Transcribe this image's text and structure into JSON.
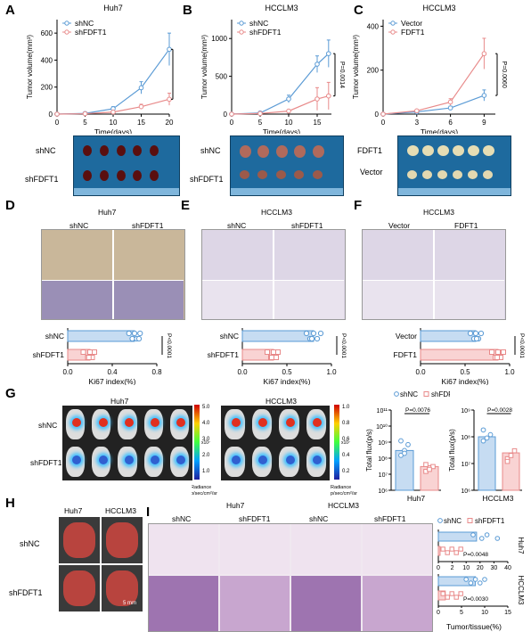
{
  "panel_letters": {
    "A": "A",
    "B": "B",
    "C": "C",
    "D": "D",
    "E": "E",
    "F": "F",
    "G": "G",
    "H": "H",
    "I": "I"
  },
  "titles": {
    "a": "Huh7",
    "b": "HCCLM3",
    "c": "HCCLM3",
    "d": "Huh7",
    "e": "HCCLM3",
    "f": "HCCLM3",
    "g1": "Huh7",
    "g2": "HCCLM3",
    "h1": "Huh7",
    "h2": "HCCLM3",
    "i1": "Huh7",
    "i2": "HCCLM3"
  },
  "photo_labels": {
    "a_top": "shNC",
    "a_bottom": "shFDFT1",
    "b_top": "shNC",
    "b_bottom": "shFDFT1",
    "c_top": "FDFT1",
    "c_bottom": "Vector"
  },
  "ihc_labels": {
    "d_left": "shNC",
    "d_right": "shFDFT1",
    "e_left": "shNC",
    "e_right": "shFDFT1",
    "f_left": "Vector",
    "f_right": "FDFT1"
  },
  "g_labels": {
    "row_top": "shNC",
    "row_bottom": "shFDFT1",
    "cb_ticks_1": [
      "5.0",
      "4.0",
      "3.0",
      "2.0",
      "1.0"
    ],
    "cb_exp_1": "x10⁷",
    "cb_ticks_2": [
      "1.0",
      "0.8",
      "0.6",
      "0.4",
      "0.2"
    ],
    "cb_exp_2": "x10⁷",
    "cb_unit": "Radiance\np/sec/cm²/sr"
  },
  "h_labels": {
    "row_top": "shNC",
    "row_bottom": "shFDFT1",
    "scale": "5 mm"
  },
  "i_labels": {
    "col1": "shNC",
    "col2": "shFDFT1",
    "col3": "shNC",
    "col4": "shFDFT1"
  },
  "colors": {
    "blue": "#5b9bd5",
    "pink": "#e88a8a",
    "bar_blue": "#c6dcf2",
    "bar_pink": "#f9d3d3"
  },
  "chart_data": [
    {
      "id": "A",
      "type": "line",
      "title": "Huh7",
      "xlabel": "Time(days)",
      "ylabel": "Tumor volume(mm³)",
      "xlim": [
        0,
        20
      ],
      "ylim": [
        0,
        700
      ],
      "xticks": [
        0,
        5,
        10,
        15,
        20
      ],
      "yticks": [
        0,
        200,
        400,
        600
      ],
      "series": [
        {
          "name": "shNC",
          "x": [
            0,
            5,
            10,
            15,
            20
          ],
          "y": [
            0,
            5,
            40,
            195,
            480
          ],
          "err": [
            0,
            2,
            15,
            45,
            120
          ]
        },
        {
          "name": "shFDFT1",
          "x": [
            0,
            5,
            10,
            15,
            20
          ],
          "y": [
            0,
            3,
            15,
            55,
            110
          ],
          "err": [
            0,
            1,
            6,
            18,
            45
          ]
        }
      ],
      "pvalue": "P=0.0018"
    },
    {
      "id": "B",
      "type": "line",
      "title": "HCCLM3",
      "xlabel": "Time(days)",
      "ylabel": "Tumor volume(mm³)",
      "xlim": [
        0,
        17.5
      ],
      "ylim": [
        0,
        1250
      ],
      "xticks": [
        0,
        5,
        10,
        15
      ],
      "yticks": [
        0,
        500,
        1000
      ],
      "series": [
        {
          "name": "shNC",
          "x": [
            0,
            5,
            10,
            15,
            17
          ],
          "y": [
            0,
            15,
            200,
            660,
            800
          ],
          "err": [
            0,
            5,
            50,
            110,
            180
          ]
        },
        {
          "name": "shFDFT1",
          "x": [
            0,
            5,
            10,
            15,
            17
          ],
          "y": [
            0,
            8,
            40,
            200,
            240
          ],
          "err": [
            0,
            3,
            12,
            150,
            180
          ]
        }
      ],
      "pvalue": "P=0.0014"
    },
    {
      "id": "C",
      "type": "line",
      "title": "HCCLM3",
      "xlabel": "Time(days)",
      "ylabel": "Tumor volume(mm³)",
      "xlim": [
        0,
        10
      ],
      "ylim": [
        0,
        430
      ],
      "xticks": [
        0,
        3,
        6,
        9
      ],
      "yticks": [
        0,
        200,
        400
      ],
      "series": [
        {
          "name": "Vector",
          "x": [
            0,
            3,
            6,
            9
          ],
          "y": [
            0,
            10,
            28,
            85
          ],
          "err": [
            0,
            3,
            8,
            25
          ]
        },
        {
          "name": "FDFT1",
          "x": [
            0,
            3,
            6,
            9
          ],
          "y": [
            0,
            15,
            55,
            275
          ],
          "err": [
            0,
            5,
            15,
            70
          ]
        }
      ],
      "pvalue": "P=0.0060"
    },
    {
      "id": "D",
      "type": "bar",
      "xlabel": "Ki67 index(%)",
      "xlim": [
        0,
        0.8
      ],
      "xticks": [
        0.0,
        0.4,
        0.8
      ],
      "categories": [
        "shNC",
        "shFDFT1"
      ],
      "values": [
        0.6,
        0.2
      ],
      "points": [
        [
          0.55,
          0.58,
          0.6,
          0.62,
          0.65,
          0.64
        ],
        [
          0.14,
          0.18,
          0.2,
          0.22,
          0.24,
          0.19
        ]
      ],
      "pvalue": "P<0.0001"
    },
    {
      "id": "E",
      "type": "bar",
      "xlabel": "Ki67 index(%)",
      "xlim": [
        0,
        1.0
      ],
      "xticks": [
        0.0,
        0.5,
        1.0
      ],
      "categories": [
        "shNC",
        "shFDFT1"
      ],
      "values": [
        0.8,
        0.35
      ],
      "points": [
        [
          0.72,
          0.76,
          0.8,
          0.84,
          0.88,
          0.78
        ],
        [
          0.28,
          0.32,
          0.35,
          0.38,
          0.4,
          0.33
        ]
      ],
      "pvalue": "P<0.0001"
    },
    {
      "id": "F",
      "type": "bar",
      "xlabel": "Ki67 index(%)",
      "xlim": [
        0,
        1.0
      ],
      "xticks": [
        0.0,
        0.5,
        1.0
      ],
      "categories": [
        "Vector",
        "FDFT1"
      ],
      "values": [
        0.62,
        0.87
      ],
      "points": [
        [
          0.56,
          0.6,
          0.62,
          0.65,
          0.68,
          0.63
        ],
        [
          0.8,
          0.84,
          0.87,
          0.9,
          0.93,
          0.86
        ]
      ],
      "pvalue": "P<0.0001"
    },
    {
      "id": "G1",
      "type": "bar",
      "title": "Huh7",
      "ylabel": "Total flux(p/s)",
      "yscale": "log",
      "ylim": [
        1000000.0,
        100000000000.0
      ],
      "yticks_labels": [
        "10⁶",
        "10⁷",
        "10⁸",
        "10⁹",
        "10¹⁰",
        "10¹¹"
      ],
      "categories": [
        "shNC",
        "shFDFT1"
      ],
      "values": [
        300000000.0,
        30000000.0
      ],
      "points": [
        [
          150000000.0,
          300000000.0,
          700000000.0,
          1200000000.0,
          200000000.0
        ],
        [
          15000000.0,
          25000000.0,
          30000000.0,
          40000000.0,
          20000000.0
        ]
      ],
      "pvalue": "P=0.0076",
      "legend": [
        "shNC",
        "shFDFT1"
      ]
    },
    {
      "id": "G2",
      "type": "bar",
      "title": "HCCLM3",
      "ylabel": "Total flux(p/s)",
      "yscale": "log",
      "ylim": [
        1000000.0,
        1000000000.0
      ],
      "yticks_labels": [
        "10⁶",
        "10⁷",
        "10⁸",
        "10⁹"
      ],
      "categories": [
        "shNC",
        "shFDFT1"
      ],
      "values": [
        100000000.0,
        25000000.0
      ],
      "points": [
        [
          70000000.0,
          90000000.0,
          120000000.0,
          180000000.0
        ],
        [
          15000000.0,
          20000000.0,
          30000000.0,
          12000000.0
        ]
      ],
      "pvalue": "P=0.0028"
    },
    {
      "id": "I",
      "type": "bar",
      "xlabel": "Tumor/tissue(%)",
      "legend": [
        "shNC",
        "shFDFT1"
      ],
      "groups": [
        {
          "name": "Huh7",
          "xlim": [
            0,
            40
          ],
          "xticks": [
            "0",
            "2",
            "10",
            "20",
            "30",
            "40"
          ],
          "values": [
            22,
            1
          ],
          "points": [
            [
              20,
              25,
              28,
              34
            ],
            [
              0.5,
              1,
              1.5,
              0.8,
              1.2
            ]
          ],
          "pvalue": "P=0.0048"
        },
        {
          "name": "HCCLM3",
          "xlim": [
            0,
            15
          ],
          "xticks": [
            "0",
            "5",
            "10",
            "15"
          ],
          "values": [
            8,
            1.5
          ],
          "points": [
            [
              6,
              7,
              8,
              9,
              10
            ],
            [
              1,
              1.5,
              2,
              1.2,
              2.5
            ]
          ],
          "pvalue": "P=0.0030"
        }
      ]
    }
  ]
}
